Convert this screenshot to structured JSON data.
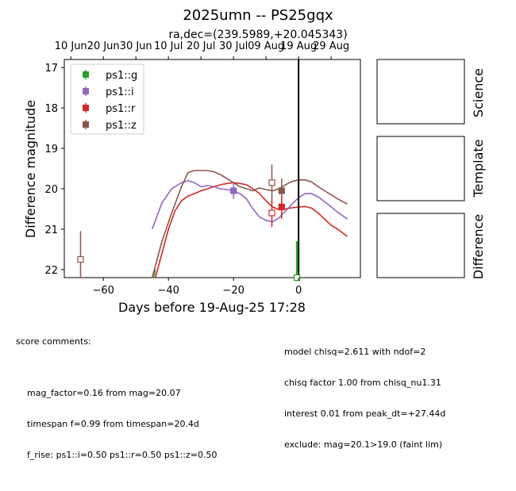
{
  "title": "2025umn -- PS25gqx",
  "subtitle": "ra,dec=(239.5989,+20.045343)",
  "colors": {
    "g": "#2ca02c",
    "i": "#9467bd",
    "r": "#d62728",
    "z": "#8c564b"
  },
  "side_panels": [
    "Science",
    "Template",
    "Difference"
  ],
  "chart_data": {
    "type": "scatter",
    "xlabel": "Days before 19-Aug-25 17:28",
    "ylabel": "Difference magnitude",
    "xlim": [
      -72,
      19
    ],
    "ylim": [
      22.2,
      16.8
    ],
    "x_ticks": [
      -60,
      -40,
      -20,
      0
    ],
    "y_ticks": [
      17,
      18,
      19,
      20,
      21,
      22
    ],
    "top_ticks": [
      {
        "label": "10 Jun",
        "x": -70
      },
      {
        "label": "20 Jun",
        "x": -60
      },
      {
        "label": "30 Jun",
        "x": -50
      },
      {
        "label": "10 Jul",
        "x": -40
      },
      {
        "label": "20 Jul",
        "x": -30
      },
      {
        "label": "30 Jul",
        "x": -20
      },
      {
        "label": "09 Aug",
        "x": -10
      },
      {
        "label": "19 Aug",
        "x": 0
      },
      {
        "label": "29 Aug",
        "x": 10
      }
    ],
    "vline_x": 0,
    "legend": [
      "ps1::g",
      "ps1::i",
      "ps1::r",
      "ps1::z"
    ],
    "legend_position": "upper-left",
    "points": [
      {
        "band": "z",
        "x": -67,
        "y": 21.75,
        "err_lo": 0.7,
        "err_hi": 1.0,
        "filled": false
      },
      {
        "band": "i",
        "x": -20,
        "y": 20.05,
        "err_lo": 0.2,
        "err_hi": 0.2,
        "filled": true
      },
      {
        "band": "z",
        "x": -8.2,
        "y": 19.85,
        "err_lo": 0.45,
        "err_hi": 0.5,
        "filled": false
      },
      {
        "band": "r",
        "x": -8.2,
        "y": 20.6,
        "err_lo": 0.3,
        "err_hi": 0.35,
        "filled": false
      },
      {
        "band": "z",
        "x": -5.2,
        "y": 20.05,
        "err_lo": 0.3,
        "err_hi": 0.3,
        "filled": true
      },
      {
        "band": "r",
        "x": -5.2,
        "y": 20.45,
        "err_lo": 0.25,
        "err_hi": 0.3,
        "filled": true
      },
      {
        "band": "g",
        "x": -0.5,
        "y": 22.2,
        "err_lo": 0.9,
        "err_hi": 0.0,
        "filled": false
      }
    ],
    "series": [
      {
        "band": "z",
        "x": [
          -45,
          -42,
          -39,
          -36,
          -34,
          -32,
          -30,
          -28,
          -26,
          -24,
          -22,
          -20,
          -18,
          -16,
          -14,
          -12,
          -10,
          -8,
          -6,
          -4,
          -2,
          0,
          2,
          4,
          6,
          8,
          10,
          12,
          15
        ],
        "y": [
          22.2,
          21.3,
          20.6,
          19.95,
          19.6,
          19.55,
          19.55,
          19.55,
          19.58,
          19.65,
          19.75,
          19.85,
          19.95,
          20.0,
          20.05,
          19.98,
          20.02,
          20.05,
          20.0,
          19.9,
          19.82,
          19.78,
          19.78,
          19.83,
          19.95,
          20.05,
          20.15,
          20.25,
          20.38
        ]
      },
      {
        "band": "i",
        "x": [
          -45,
          -42,
          -39,
          -36,
          -34,
          -32,
          -30,
          -28,
          -26,
          -24,
          -22,
          -20,
          -18,
          -16,
          -14,
          -12,
          -10,
          -8,
          -6,
          -4,
          -2,
          0,
          2,
          4,
          6,
          8,
          10,
          12,
          15
        ],
        "y": [
          21.0,
          20.35,
          20.0,
          19.85,
          19.8,
          19.85,
          19.95,
          19.92,
          19.95,
          20.0,
          20.02,
          20.05,
          20.12,
          20.25,
          20.5,
          20.7,
          20.78,
          20.82,
          20.72,
          20.55,
          20.38,
          20.22,
          20.12,
          20.12,
          20.2,
          20.32,
          20.45,
          20.58,
          20.75
        ]
      },
      {
        "band": "r",
        "x": [
          -44,
          -42,
          -40,
          -38,
          -36,
          -34,
          -32,
          -30,
          -28,
          -26,
          -24,
          -22,
          -20,
          -18,
          -16,
          -14,
          -12,
          -10,
          -8,
          -6,
          -4,
          -2,
          0,
          2,
          4,
          6,
          8,
          10,
          12,
          15
        ],
        "y": [
          22.2,
          21.6,
          21.0,
          20.55,
          20.3,
          20.18,
          20.12,
          20.05,
          20.0,
          19.95,
          19.9,
          19.87,
          19.85,
          19.87,
          19.9,
          20.0,
          20.12,
          20.3,
          20.45,
          20.52,
          20.5,
          20.47,
          20.45,
          20.44,
          20.48,
          20.6,
          20.75,
          20.9,
          21.0,
          21.18
        ]
      },
      {
        "band": "g",
        "x": [
          -44.5,
          -44
        ],
        "y": [
          22.2,
          22.0
        ]
      }
    ]
  },
  "comments_left": {
    "header": "score comments:",
    "lines": [
      "mag_factor=0.16 from mag=20.07",
      "timespan f=0.99 from timespan=20.4d",
      "f_rise: ps1::i=0.50 ps1::r=0.50 ps1::z=0.50"
    ]
  },
  "comments_right": {
    "lines": [
      "model chisq=2.611 with ndof=2",
      "chisq factor 1.00 from chisq_nu1.31",
      "interest 0.01 from peak_dt=+27.44d",
      "exclude: mag=20.1>19.0 (faint lim)"
    ]
  }
}
